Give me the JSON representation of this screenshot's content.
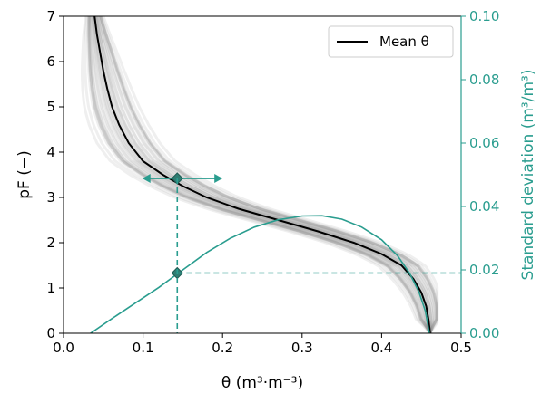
{
  "chart_data": {
    "type": "line",
    "colors": {
      "mean": "#000000",
      "ensemble": "#808080",
      "accent": "#2a9d8f"
    },
    "x_axis": {
      "label": "θ (m³·m⁻³)",
      "range": [
        0.0,
        0.5
      ],
      "ticks": [
        0.0,
        0.1,
        0.2,
        0.3,
        0.4,
        0.5
      ],
      "tick_labels": [
        "0.0",
        "0.1",
        "0.2",
        "0.3",
        "0.4",
        "0.5"
      ]
    },
    "y_axis_left": {
      "label": "pF (−)",
      "range": [
        0,
        7
      ],
      "ticks": [
        0,
        1,
        2,
        3,
        4,
        5,
        6,
        7
      ],
      "tick_labels": [
        "0",
        "1",
        "2",
        "3",
        "4",
        "5",
        "6",
        "7"
      ]
    },
    "y_axis_right": {
      "label": "Standard deviation (m³/m³)",
      "range": [
        0.0,
        0.1
      ],
      "ticks": [
        0.0,
        0.02,
        0.04,
        0.06,
        0.08,
        0.1
      ],
      "tick_labels": [
        "0.00",
        "0.02",
        "0.04",
        "0.06",
        "0.08",
        "0.10"
      ]
    },
    "legend": {
      "placement": "upper right",
      "entries": [
        {
          "label": "Mean θ"
        }
      ]
    },
    "series": [
      {
        "axis": "left",
        "points": [
          [
            0.039,
            7.0
          ],
          [
            0.042,
            6.6
          ],
          [
            0.046,
            6.2
          ],
          [
            0.05,
            5.8
          ],
          [
            0.055,
            5.4
          ],
          [
            0.061,
            5.0
          ],
          [
            0.07,
            4.6
          ],
          [
            0.082,
            4.2
          ],
          [
            0.1,
            3.8
          ],
          [
            0.125,
            3.5
          ],
          [
            0.15,
            3.25
          ],
          [
            0.18,
            3.0
          ],
          [
            0.22,
            2.75
          ],
          [
            0.27,
            2.5
          ],
          [
            0.32,
            2.25
          ],
          [
            0.365,
            2.0
          ],
          [
            0.4,
            1.75
          ],
          [
            0.425,
            1.5
          ],
          [
            0.44,
            1.2
          ],
          [
            0.45,
            0.9
          ],
          [
            0.456,
            0.6
          ],
          [
            0.459,
            0.3
          ],
          [
            0.461,
            0.0
          ]
        ]
      },
      {
        "axis": "right",
        "points": [
          [
            0.034,
            0.0
          ],
          [
            0.06,
            0.0045
          ],
          [
            0.09,
            0.0095
          ],
          [
            0.12,
            0.0145
          ],
          [
            0.15,
            0.02
          ],
          [
            0.18,
            0.0255
          ],
          [
            0.21,
            0.03
          ],
          [
            0.24,
            0.0335
          ],
          [
            0.27,
            0.0358
          ],
          [
            0.3,
            0.037
          ],
          [
            0.325,
            0.0371
          ],
          [
            0.35,
            0.036
          ],
          [
            0.375,
            0.0335
          ],
          [
            0.4,
            0.0295
          ],
          [
            0.42,
            0.0245
          ],
          [
            0.435,
            0.019
          ],
          [
            0.447,
            0.013
          ],
          [
            0.455,
            0.007
          ],
          [
            0.46,
            0.0
          ]
        ]
      }
    ],
    "annotations": [
      {
        "type": "horizontal-double-arrow",
        "axis": "left",
        "x_from": 0.099,
        "x_to": 0.2,
        "y": 3.42,
        "marker": {
          "shape": "diamond",
          "x": 0.143,
          "y": 3.42
        }
      },
      {
        "type": "marker",
        "axis": "right",
        "shape": "diamond",
        "x": 0.143,
        "y": 0.019
      },
      {
        "type": "vertical-dashed",
        "x": 0.143,
        "y_from": 3.42,
        "y_to": 0.0,
        "axis": "left"
      },
      {
        "type": "horizontal-dashed",
        "axis": "right",
        "y": 0.019,
        "x_from": 0.143,
        "x_to": 0.5
      }
    ]
  }
}
